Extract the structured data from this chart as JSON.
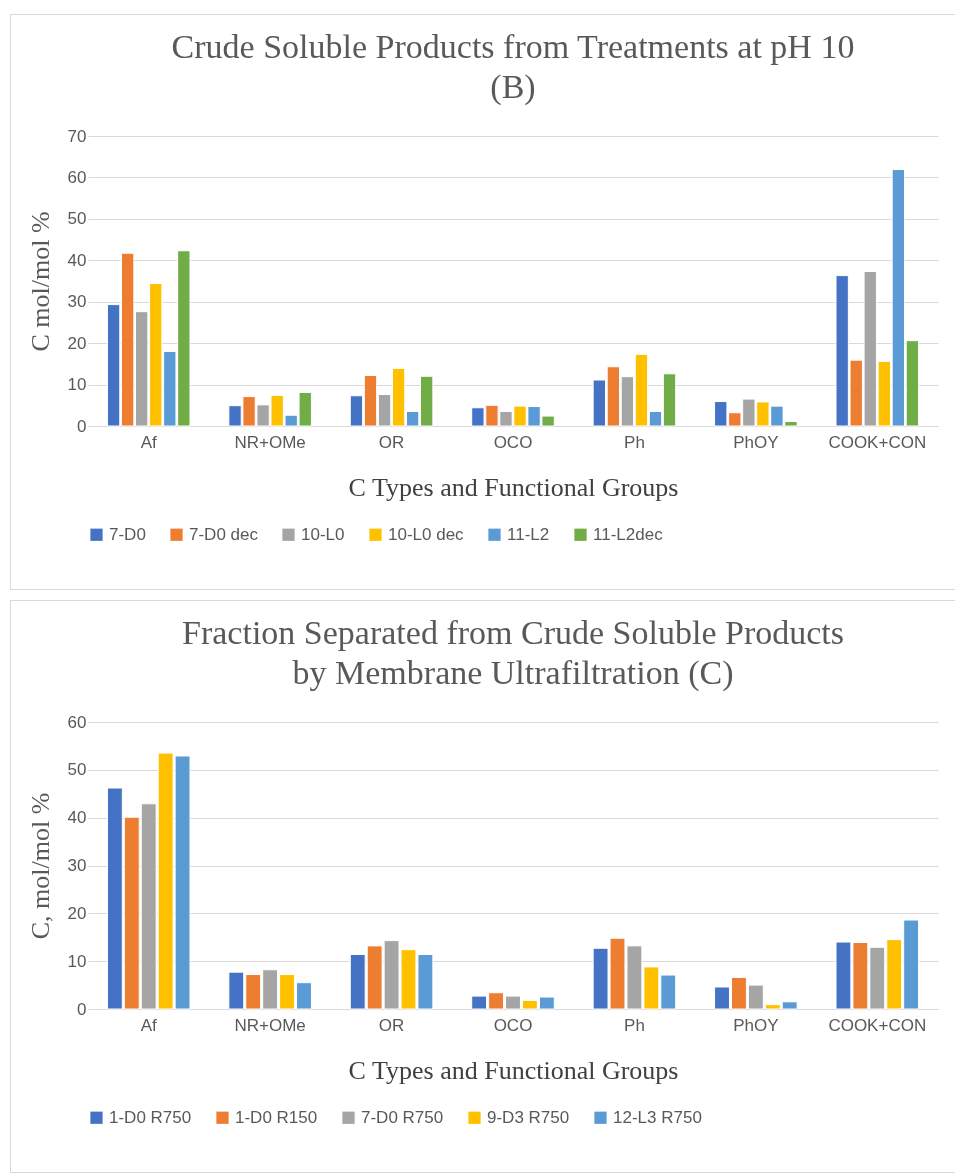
{
  "chart_data": [
    {
      "type": "bar",
      "title": [
        "Crude Soluble Products from Treatments at pH 10",
        "(B)"
      ],
      "xlabel": "C Types and Functional Groups",
      "ylabel": "C mol/mol %",
      "categories": [
        "Af",
        "NR+OMe",
        "OR",
        "OCO",
        "Ph",
        "PhOY",
        "COOK+CON"
      ],
      "series": [
        {
          "name": "7-D0",
          "color": "#4472c4",
          "values": [
            29.3,
            4.9,
            7.3,
            4.4,
            11.1,
            5.9,
            36.3
          ]
        },
        {
          "name": "7-D0 dec",
          "color": "#ed7d31",
          "values": [
            41.7,
            7.1,
            12.2,
            5.0,
            14.3,
            3.2,
            15.9
          ]
        },
        {
          "name": "10-L0",
          "color": "#a5a5a5",
          "values": [
            27.6,
            5.1,
            7.6,
            3.5,
            11.9,
            6.5,
            37.3
          ]
        },
        {
          "name": "10-L0 dec",
          "color": "#ffc000",
          "values": [
            34.4,
            7.4,
            13.9,
            4.8,
            17.3,
            5.8,
            15.6
          ]
        },
        {
          "name": "11-L2",
          "color": "#5b9bd5",
          "values": [
            18.0,
            2.6,
            3.5,
            4.7,
            3.5,
            4.8,
            61.9
          ]
        },
        {
          "name": "11-L2dec",
          "color": "#70ad47",
          "values": [
            42.3,
            8.1,
            12.0,
            2.4,
            12.6,
            1.1,
            20.6
          ]
        }
      ],
      "ylim": [
        0,
        70
      ],
      "yticks": [
        0,
        10,
        20,
        30,
        40,
        50,
        60,
        70
      ],
      "grid": "y",
      "legend": "bottom"
    },
    {
      "type": "bar",
      "title": [
        "Fraction Separated from Crude Soluble Products",
        "by Membrane Ultrafiltration (C)"
      ],
      "xlabel": "C Types and Functional Groups",
      "ylabel": "C, mol/mol %",
      "categories": [
        "Af",
        "NR+OMe",
        "OR",
        "OCO",
        "Ph",
        "PhOY",
        "COOK+CON"
      ],
      "series": [
        {
          "name": "1-D0 R750",
          "color": "#4472c4",
          "values": [
            46.2,
            7.7,
            11.4,
            2.7,
            12.7,
            4.6,
            14.0
          ]
        },
        {
          "name": "1-D0 R150",
          "color": "#ed7d31",
          "values": [
            40.1,
            7.2,
            13.2,
            3.4,
            14.8,
            6.6,
            13.9
          ]
        },
        {
          "name": "7-D0 R750",
          "color": "#a5a5a5",
          "values": [
            42.9,
            8.2,
            14.3,
            2.7,
            13.2,
            5.0,
            12.9
          ]
        },
        {
          "name": "9-D3 R750",
          "color": "#ffc000",
          "values": [
            53.5,
            7.2,
            12.4,
            1.8,
            8.8,
            0.9,
            14.5
          ]
        },
        {
          "name": "12-L3 R750",
          "color": "#5b9bd5",
          "values": [
            52.9,
            5.5,
            11.4,
            2.5,
            7.1,
            1.5,
            18.6
          ]
        }
      ],
      "ylim": [
        0,
        60
      ],
      "yticks": [
        0,
        10,
        20,
        30,
        40,
        50,
        60
      ],
      "grid": "y",
      "legend": "bottom"
    }
  ]
}
